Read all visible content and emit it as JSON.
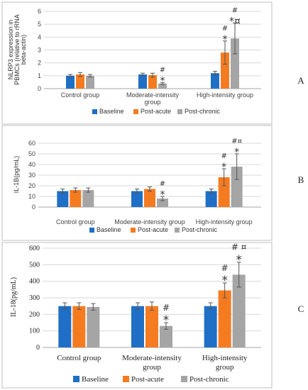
{
  "colors": {
    "baseline": "#1f6fc6",
    "post_acute": "#f57b20",
    "post_chronic": "#a5a5a5",
    "grid": "#d9d9d9"
  },
  "chart_data": [
    {
      "panel": "A",
      "type": "bar",
      "ylabel": "NLRP3 expression in PBMCs (relative to rRNA beta-actin)",
      "ylabel_lines": [
        "NLRP3 expression in",
        "PBMCs (relative to rRNA",
        "beta-actin)"
      ],
      "ylim": [
        0,
        6
      ],
      "yticks": [
        0,
        1,
        2,
        3,
        4,
        5,
        6
      ],
      "categories": [
        "Control group",
        "Moderate-intensity group",
        "High-intensity group"
      ],
      "category_lines": [
        [
          "Control group"
        ],
        [
          "Moderate-intensity",
          "group"
        ],
        [
          "High-intensity group"
        ]
      ],
      "legend_position": "bottom",
      "series": [
        {
          "name": "Baseline",
          "values": [
            1.0,
            1.1,
            1.2
          ],
          "errors": [
            0.1,
            0.1,
            0.15
          ],
          "marks": [
            "",
            "",
            ""
          ]
        },
        {
          "name": "Post-acute",
          "values": [
            1.1,
            1.05,
            2.8
          ],
          "errors": [
            0.15,
            0.15,
            0.9
          ],
          "marks": [
            "",
            "",
            "#|*"
          ]
        },
        {
          "name": "Post-chronic",
          "values": [
            1.0,
            0.4,
            3.9
          ],
          "errors": [
            0.1,
            0.08,
            1.2
          ],
          "marks": [
            "",
            "#|*",
            "#|*¤"
          ]
        }
      ]
    },
    {
      "panel": "B",
      "type": "bar",
      "ylabel": "IL-1B(pg/mL)",
      "ylabel_lines": [
        "IL-1B(pg/mL)"
      ],
      "ylim": [
        0,
        60
      ],
      "yticks": [
        0,
        10,
        20,
        30,
        40,
        50,
        60
      ],
      "categories": [
        "Control group",
        "Moderate-intensity group",
        "High-intensity group"
      ],
      "category_lines": [
        [
          "Control group"
        ],
        [
          "Moderate-intensity group"
        ],
        [
          "High-intensity group"
        ]
      ],
      "legend_position": "bottom",
      "series": [
        {
          "name": "Baseline",
          "values": [
            15,
            15,
            15
          ],
          "errors": [
            2,
            2,
            2
          ],
          "marks": [
            "",
            "",
            ""
          ]
        },
        {
          "name": "Post-acute",
          "values": [
            16,
            17,
            28
          ],
          "errors": [
            2,
            2,
            8
          ],
          "marks": [
            "",
            "",
            "#|*"
          ]
        },
        {
          "name": "Post-chronic",
          "values": [
            16,
            8,
            38
          ],
          "errors": [
            2,
            2,
            12
          ],
          "marks": [
            "",
            "#|*",
            "#¤|*"
          ]
        }
      ]
    },
    {
      "panel": "C",
      "type": "bar",
      "ylabel": "IL-18(pg/mL)",
      "ylabel_lines": [
        "IL-18(pg/mL)"
      ],
      "ylim": [
        0,
        600
      ],
      "yticks": [
        0,
        100,
        200,
        300,
        400,
        500,
        600
      ],
      "categories": [
        "Control group",
        "Moderate-intensity group",
        "High-intensity group"
      ],
      "category_lines": [
        [
          "Control group"
        ],
        [
          "Moderate-intensity",
          "group"
        ],
        [
          "High-intensity",
          "group"
        ]
      ],
      "legend_position": "bottom",
      "series": [
        {
          "name": "Baseline",
          "values": [
            250,
            250,
            250
          ],
          "errors": [
            20,
            20,
            20
          ],
          "marks": [
            "",
            "",
            ""
          ]
        },
        {
          "name": "Post-acute",
          "values": [
            250,
            250,
            345
          ],
          "errors": [
            20,
            25,
            45
          ],
          "marks": [
            "",
            "",
            "#|*"
          ]
        },
        {
          "name": "Post-chronic",
          "values": [
            245,
            130,
            440
          ],
          "errors": [
            20,
            20,
            75
          ],
          "marks": [
            "",
            "#|*",
            "# ¤|*"
          ]
        }
      ]
    }
  ]
}
